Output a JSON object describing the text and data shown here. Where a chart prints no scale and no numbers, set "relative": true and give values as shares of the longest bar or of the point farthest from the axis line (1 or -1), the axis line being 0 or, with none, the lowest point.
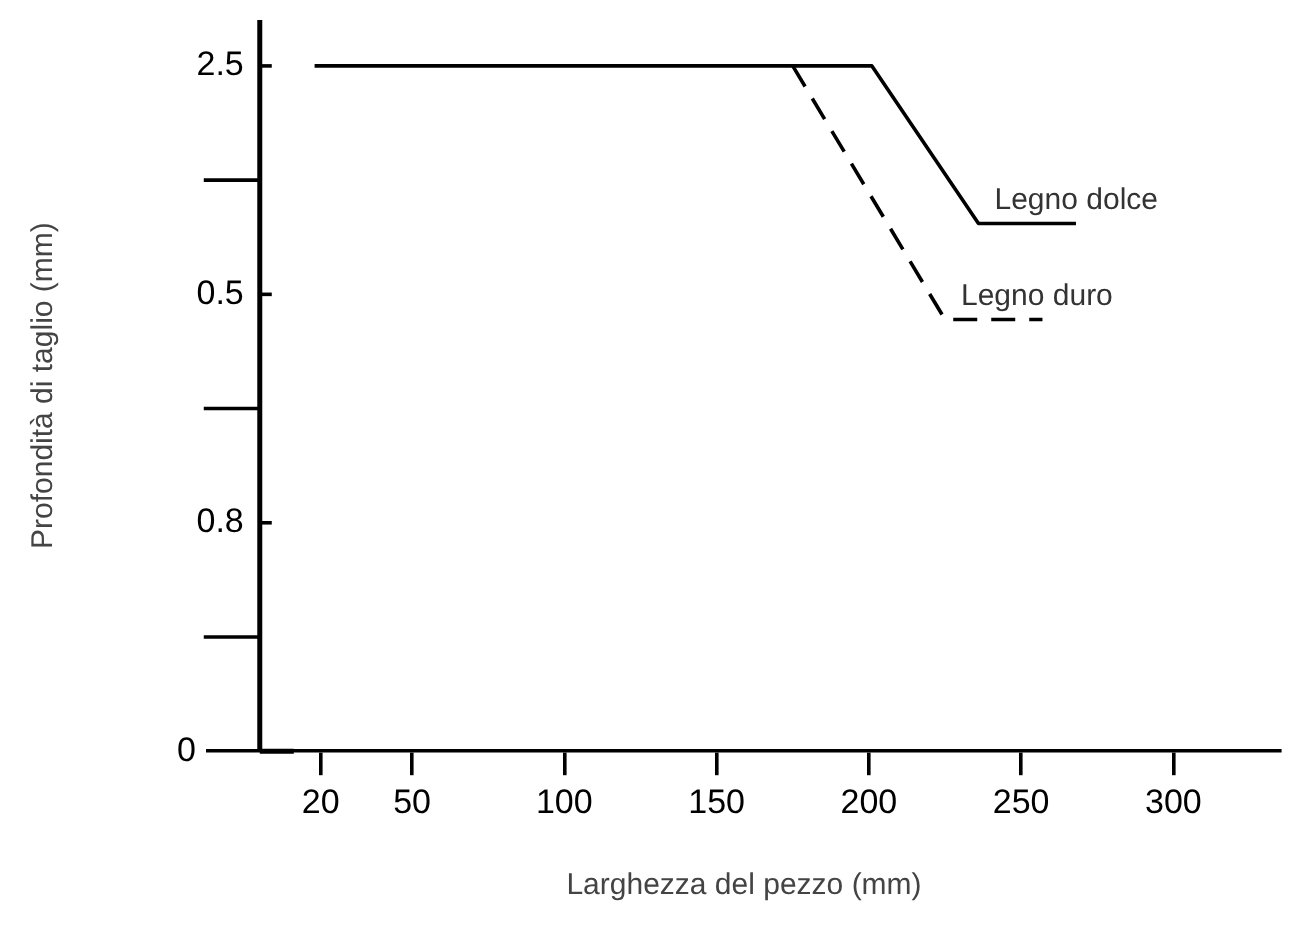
{
  "chart_data": {
    "type": "line",
    "xlabel": "Larghezza del pezzo (mm)",
    "ylabel": "Profondità di taglio (mm)",
    "xlim": [
      -17,
      335
    ],
    "xticks": [
      20,
      50,
      100,
      150,
      200,
      250,
      300
    ],
    "relative": true,
    "annotations": [
      "2.5",
      "0.5",
      "0.8",
      "0"
    ],
    "series": [
      {
        "name": "Legno dolce",
        "color": "#000000",
        "line_style": "solid",
        "x": [
          18,
          201,
          236,
          268
        ],
        "values": [
          1,
          1,
          0.77,
          0.77
        ]
      },
      {
        "name": "Legno duro",
        "color": "#000000",
        "line_style": "dashed",
        "x": [
          175,
          225,
          257
        ],
        "values": [
          1,
          0.63,
          0.63
        ]
      }
    ],
    "grid": false,
    "legend": false,
    "marker": "none"
  }
}
